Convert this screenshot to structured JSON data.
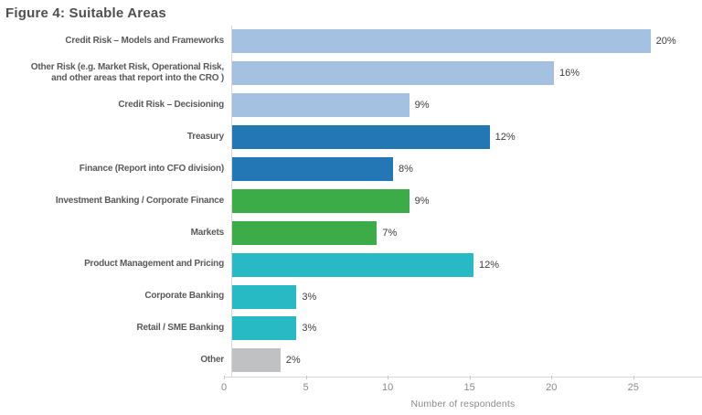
{
  "title": "Figure 4: Suitable Areas",
  "chart_data": {
    "type": "bar",
    "orientation": "horizontal",
    "title": "Figure 4: Suitable Areas",
    "xlabel": "Number of respondents",
    "xlim": [
      0,
      29.2
    ],
    "xticks": [
      0,
      5,
      10,
      15,
      20,
      25
    ],
    "grid": false,
    "categories": [
      "Credit Risk – Models and Frameworks",
      "Other Risk (e.g. Market Risk, Operational Risk,\nand other areas that report into the CRO )",
      "Credit Risk – Decisioning",
      "Treasury",
      "Finance (Report into CFO division)",
      "Investment Banking / Corporate Finance",
      "Markets",
      "Product Management and Pricing",
      "Corporate Banking",
      "Retail / SME Banking",
      "Other"
    ],
    "values": [
      26,
      20,
      11,
      16,
      10,
      11,
      9,
      15,
      4,
      4,
      3
    ],
    "value_labels": [
      "20%",
      "16%",
      "9%",
      "12%",
      "8%",
      "9%",
      "7%",
      "12%",
      "3%",
      "3%",
      "2%"
    ],
    "bar_colors": [
      "#A4C1E2",
      "#A4C1E2",
      "#A4C1E2",
      "#2277B4",
      "#2277B4",
      "#3BAC47",
      "#3BAC47",
      "#27B9C4",
      "#27B9C4",
      "#27B9C4",
      "#BFC1C2"
    ],
    "palette": {
      "light_blue": "#A4C1E2",
      "blue": "#2277B4",
      "green": "#3BAC47",
      "teal": "#27B9C4",
      "gray": "#BFC1C2",
      "axis_line": "#D8D8D8",
      "tick_text": "#8A8A8A",
      "value_text": "#3D3D3D",
      "label_text": "#58595B",
      "title_text": "#4F4F51"
    }
  }
}
